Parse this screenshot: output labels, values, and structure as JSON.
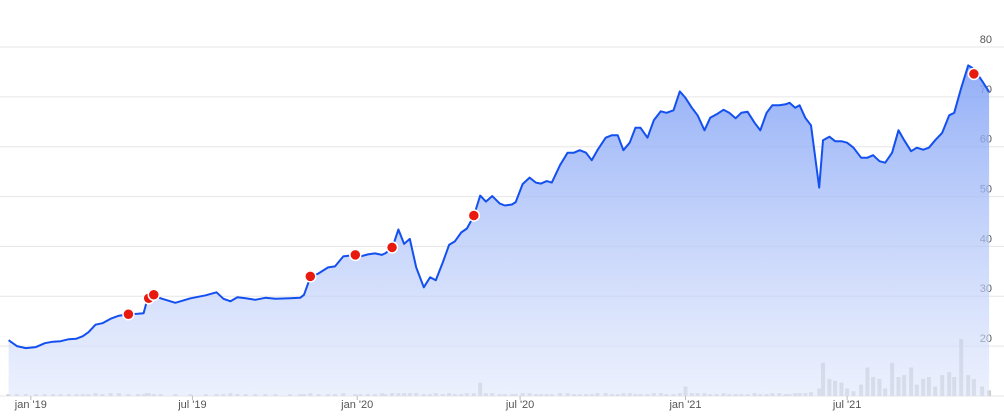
{
  "chart_data": {
    "type": "line",
    "x": [
      -3.5,
      -2.2,
      -0.8,
      0.8,
      2.2,
      3.5,
      4.7,
      6.0,
      7.2,
      8.2,
      9.1,
      10.2,
      11.3,
      12.6,
      13.9,
      15.4,
      16.9,
      17.8,
      18.3,
      18.6,
      19.4,
      20.5,
      22.8,
      25.2,
      27.6,
      29.3,
      30.4,
      31.5,
      32.6,
      33.9,
      35.4,
      37.0,
      38.6,
      40.9,
      42.5,
      43.1,
      44.1,
      45.4,
      46.9,
      48.0,
      49.3,
      51.2,
      52.0,
      53.2,
      54.3,
      55.4,
      55.9,
      57.0,
      58.0,
      58.9,
      59.8,
      60.8,
      62.0,
      63.0,
      63.9,
      65.0,
      66.0,
      66.9,
      67.9,
      68.8,
      69.9,
      70.9,
      71.8,
      72.8,
      74.0,
      74.8,
      75.9,
      76.5,
      77.6,
      78.7,
      79.7,
      80.5,
      81.4,
      82.2,
      83.5,
      84.7,
      85.7,
      86.6,
      87.6,
      88.5,
      89.4,
      90.7,
      91.7,
      92.6,
      93.5,
      94.5,
      95.4,
      96.2,
      97.3,
      98.3,
      99.4,
      100.3,
      101.4,
      102.4,
      103.3,
      104.3,
      105.2,
      106.3,
      107.2,
      108.2,
      109.3,
      110.2,
      111.2,
      112.1,
      113.1,
      114.2,
      115.1,
      116.1,
      117.0,
      118.1,
      119.1,
      119.7,
      120.6,
      121.3,
      122.2,
      123.1,
      124.4,
      125.0,
      126.0,
      126.9,
      127.9,
      128.8,
      129.8,
      131.0,
      132.0,
      132.9,
      133.9,
      134.8,
      135.9,
      136.9,
      137.8,
      138.9,
      139.8,
      140.8,
      141.7,
      142.7,
      143.8,
      144.9,
      145.7,
      146.8,
      147.9,
      148.8,
      150.1,
      151.2
    ],
    "series": [
      {
        "color": "#1450f0",
        "values": [
          21.2,
          20.0,
          19.6,
          19.8,
          20.6,
          20.9,
          21.0,
          21.4,
          21.5,
          22.0,
          22.8,
          24.3,
          24.6,
          25.5,
          26.1,
          26.4,
          26.5,
          26.6,
          29.0,
          29.6,
          30.2,
          29.6,
          28.7,
          29.6,
          30.2,
          30.8,
          29.5,
          29.0,
          29.8,
          29.6,
          29.3,
          29.7,
          29.5,
          29.6,
          29.7,
          30.3,
          33.8,
          34.6,
          35.8,
          36.0,
          38.0,
          38.3,
          38.0,
          38.4,
          38.6,
          38.3,
          38.6,
          39.6,
          43.4,
          40.5,
          41.5,
          35.8,
          31.8,
          33.8,
          33.2,
          36.8,
          40.3,
          41.0,
          42.8,
          43.6,
          46.1,
          50.2,
          49.0,
          50.1,
          48.6,
          48.2,
          48.4,
          48.9,
          52.5,
          53.8,
          52.8,
          52.6,
          53.1,
          52.8,
          56.3,
          58.8,
          58.8,
          59.3,
          58.8,
          57.3,
          59.3,
          61.8,
          62.3,
          62.3,
          59.3,
          60.8,
          63.8,
          63.8,
          61.8,
          65.3,
          67.1,
          66.8,
          67.3,
          71.1,
          69.8,
          67.8,
          66.3,
          63.3,
          65.8,
          66.5,
          67.4,
          66.8,
          65.7,
          66.8,
          67.0,
          64.8,
          63.3,
          66.8,
          68.3,
          68.3,
          68.5,
          68.8,
          67.8,
          68.3,
          65.8,
          64.3,
          51.8,
          61.3,
          62.0,
          61.1,
          61.1,
          60.8,
          59.8,
          57.8,
          57.8,
          58.3,
          57.1,
          56.8,
          58.8,
          63.3,
          61.3,
          59.1,
          59.8,
          59.4,
          59.8,
          61.3,
          62.8,
          66.3,
          66.8,
          71.8,
          76.3,
          75.6,
          73.2,
          71.0
        ]
      }
    ],
    "volume": {
      "color": "#cfcfcf",
      "axis": "y2",
      "values": [
        2,
        2,
        2,
        2,
        2,
        2,
        2,
        2,
        2,
        2,
        2,
        3,
        2,
        3,
        3,
        2,
        2,
        2,
        3,
        3,
        2,
        2,
        2,
        2,
        2,
        2,
        2,
        3,
        2,
        2,
        2,
        2,
        2,
        2,
        2,
        2,
        3,
        2,
        2,
        2,
        3,
        2,
        2,
        2,
        2,
        3,
        2,
        3,
        3,
        3,
        3,
        3,
        2,
        2,
        3,
        2,
        3,
        2,
        2,
        3,
        3,
        14,
        3,
        3,
        2,
        2,
        2,
        2,
        3,
        3,
        2,
        2,
        2,
        2,
        3,
        3,
        2,
        2,
        2,
        2,
        3,
        3,
        2,
        2,
        3,
        3,
        2,
        2,
        2,
        3,
        3,
        2,
        2,
        3,
        10,
        3,
        3,
        3,
        2,
        2,
        3,
        2,
        2,
        2,
        2,
        3,
        2,
        2,
        3,
        3,
        2,
        2,
        3,
        3,
        3,
        4,
        8,
        35,
        18,
        16,
        14,
        8,
        5,
        12,
        30,
        20,
        18,
        8,
        35,
        20,
        22,
        30,
        12,
        18,
        20,
        10,
        22,
        25,
        20,
        60,
        22,
        18,
        10,
        6
      ]
    },
    "markers": {
      "color": "#e8190f",
      "x": [
        15.4,
        18.6,
        19.4,
        44.1,
        51.2,
        57.0,
        69.9,
        148.8
      ],
      "values": [
        26.4,
        29.6,
        30.3,
        34.0,
        38.3,
        39.8,
        46.2,
        74.6
      ]
    },
    "xlim": [
      -3.6,
      151.5
    ],
    "xticks": [
      {
        "value": 0,
        "label": "jan '19"
      },
      {
        "value": 25.5,
        "label": "jul '19"
      },
      {
        "value": 51.5,
        "label": "jan '20"
      },
      {
        "value": 77.2,
        "label": "jul '20"
      },
      {
        "value": 103.3,
        "label": "jan '21"
      },
      {
        "value": 128.8,
        "label": "jul '21"
      }
    ],
    "ylim": [
      10,
      80
    ],
    "yticks": [
      20,
      30,
      40,
      50,
      60,
      70,
      80
    ],
    "y2lim": [
      0,
      100
    ],
    "grid": true
  }
}
